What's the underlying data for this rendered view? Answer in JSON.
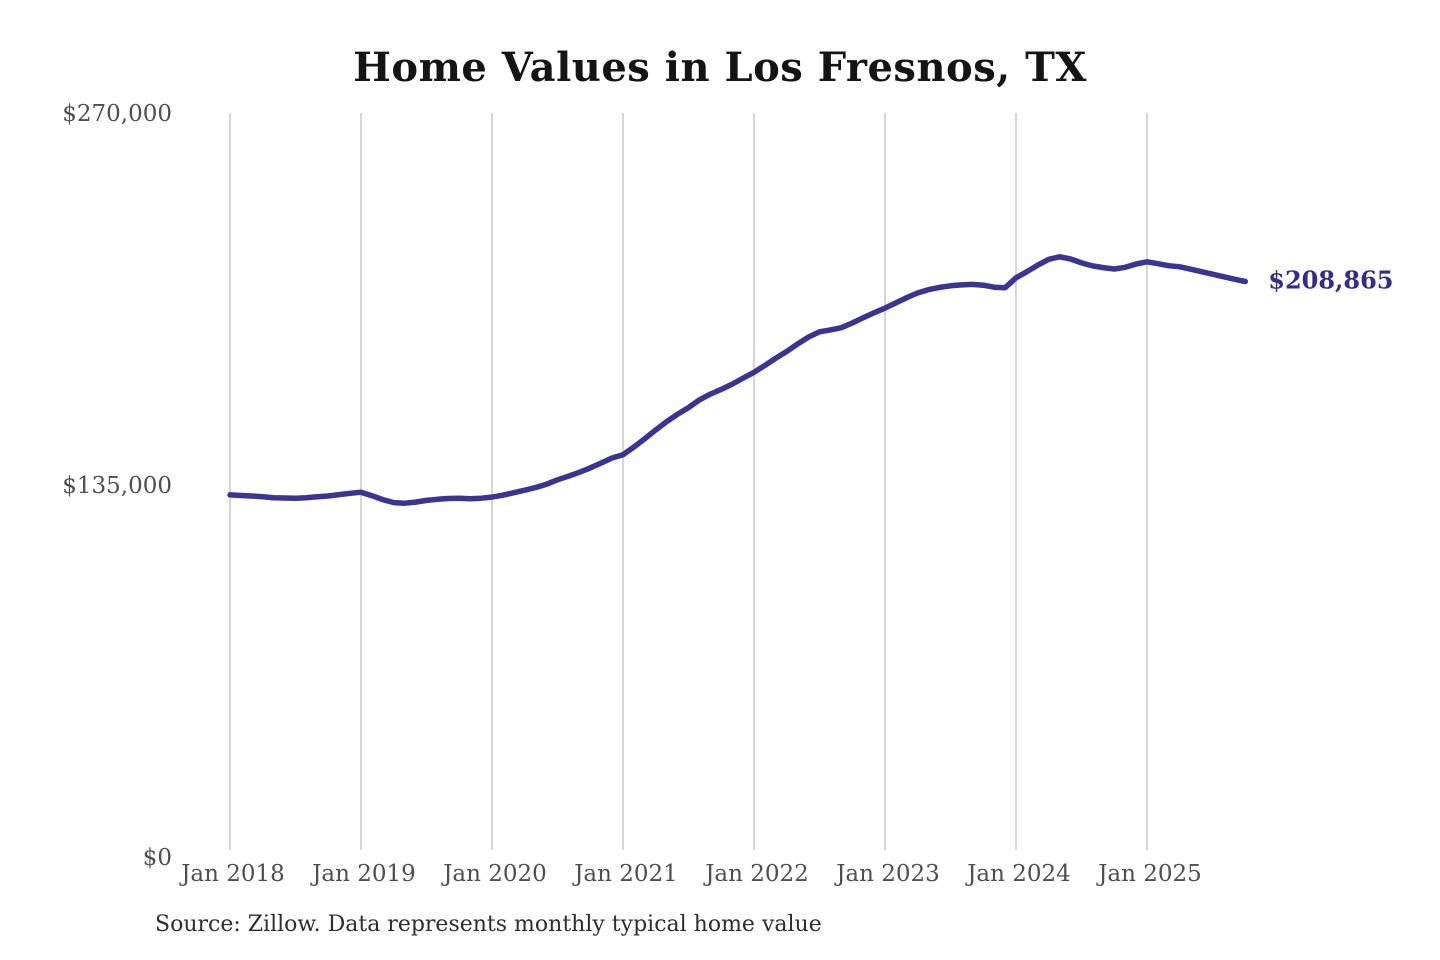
{
  "chart_data": {
    "type": "line",
    "title": "Home Values in Los Fresnos, TX",
    "source_note": "Source: Zillow. Data represents monthly typical home value",
    "xlabel": "",
    "ylabel": "",
    "ylim": [
      0,
      270000
    ],
    "grid": "vertical-only",
    "legend": "none",
    "y_ticks": [
      {
        "value": 0,
        "label": "$0"
      },
      {
        "value": 135000,
        "label": "$135,000"
      },
      {
        "value": 270000,
        "label": "$270,000"
      }
    ],
    "x_ticks": [
      {
        "month_index": 0,
        "label": "Jan 2018"
      },
      {
        "month_index": 12,
        "label": "Jan 2019"
      },
      {
        "month_index": 24,
        "label": "Jan 2020"
      },
      {
        "month_index": 36,
        "label": "Jan 2021"
      },
      {
        "month_index": 48,
        "label": "Jan 2022"
      },
      {
        "month_index": 60,
        "label": "Jan 2023"
      },
      {
        "month_index": 72,
        "label": "Jan 2024"
      },
      {
        "month_index": 84,
        "label": "Jan 2025"
      }
    ],
    "annotation": {
      "text": "$208,865",
      "value": 208865
    },
    "series": [
      {
        "name": "Typical home value",
        "frequency": "monthly",
        "x": [
          "2018-01",
          "2018-02",
          "2018-03",
          "2018-04",
          "2018-05",
          "2018-06",
          "2018-07",
          "2018-08",
          "2018-09",
          "2018-10",
          "2018-11",
          "2018-12",
          "2019-01",
          "2019-02",
          "2019-03",
          "2019-04",
          "2019-05",
          "2019-06",
          "2019-07",
          "2019-08",
          "2019-09",
          "2019-10",
          "2019-11",
          "2019-12",
          "2020-01",
          "2020-02",
          "2020-03",
          "2020-04",
          "2020-05",
          "2020-06",
          "2020-07",
          "2020-08",
          "2020-09",
          "2020-10",
          "2020-11",
          "2020-12",
          "2021-01",
          "2021-02",
          "2021-03",
          "2021-04",
          "2021-05",
          "2021-06",
          "2021-07",
          "2021-08",
          "2021-09",
          "2021-10",
          "2021-11",
          "2021-12",
          "2022-01",
          "2022-02",
          "2022-03",
          "2022-04",
          "2022-05",
          "2022-06",
          "2022-07",
          "2022-08",
          "2022-09",
          "2022-10",
          "2022-11",
          "2022-12",
          "2023-01",
          "2023-02",
          "2023-03",
          "2023-04",
          "2023-05",
          "2023-06",
          "2023-07",
          "2023-08",
          "2023-09",
          "2023-10",
          "2023-11",
          "2023-12",
          "2024-01",
          "2024-02",
          "2024-03",
          "2024-04",
          "2024-05",
          "2024-06",
          "2024-07",
          "2024-08",
          "2024-09",
          "2024-10",
          "2024-11",
          "2024-12",
          "2025-01",
          "2025-02",
          "2025-03",
          "2025-04",
          "2025-05",
          "2025-06",
          "2025-07",
          "2025-08",
          "2025-09",
          "2025-10"
        ],
        "values": [
          131400,
          131200,
          131000,
          130700,
          130400,
          130300,
          130200,
          130400,
          130700,
          131000,
          131500,
          132000,
          132400,
          131100,
          129700,
          128600,
          128400,
          128800,
          129400,
          129800,
          130100,
          130200,
          130000,
          130200,
          130600,
          131300,
          132200,
          133100,
          134100,
          135300,
          136900,
          138200,
          139600,
          141200,
          143000,
          144800,
          146000,
          148800,
          151800,
          155000,
          158000,
          160700,
          163100,
          165900,
          168000,
          169700,
          171600,
          173800,
          175900,
          178400,
          181000,
          183500,
          186200,
          188700,
          190600,
          191300,
          192100,
          193800,
          195700,
          197500,
          199200,
          201100,
          203000,
          204700,
          205900,
          206700,
          207300,
          207600,
          207800,
          207500,
          206800,
          206600,
          210200,
          212400,
          214800,
          216900,
          217800,
          217000,
          215600,
          214500,
          213900,
          213400,
          214000,
          215200,
          216000,
          215300,
          214600,
          214200,
          213300,
          212400,
          211500,
          210600,
          209700,
          208865
        ]
      }
    ],
    "colors": {
      "line": "#3a3492",
      "annotation_text": "#322c8e",
      "grid": "#cccccc",
      "axis_text": "#4f4f4f",
      "title_text": "#141414",
      "source_text": "#2e2e2e"
    }
  }
}
